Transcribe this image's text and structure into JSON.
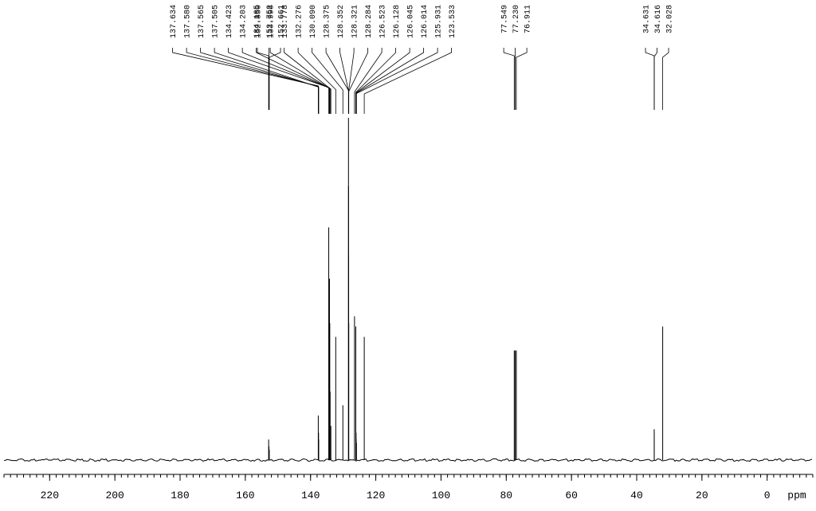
{
  "chart_data": {
    "type": "spectrum",
    "x_label": "ppm",
    "xlim": [
      234,
      -14
    ],
    "xticks": [
      220,
      200,
      180,
      160,
      140,
      120,
      100,
      80,
      60,
      40,
      20,
      0
    ],
    "color": "#000000",
    "x": [
      152.85,
      152.752,
      152.661,
      137.634,
      137.58,
      137.565,
      137.505,
      134.423,
      134.203,
      134.105,
      133.998,
      133.778,
      132.276,
      130.09,
      128.375,
      128.352,
      128.321,
      128.284,
      126.523,
      126.128,
      126.045,
      126.014,
      125.931,
      123.533,
      77.549,
      77.23,
      76.911,
      34.631,
      34.616,
      32.028
    ],
    "peak_labels": [
      "152.850",
      "152.752",
      "152.661",
      "137.634",
      "137.580",
      "137.565",
      "137.505",
      "134.423",
      "134.203",
      "134.105",
      "133.998",
      "133.778",
      "132.276",
      "130.090",
      "128.375",
      "128.352",
      "128.321",
      "128.284",
      "126.523",
      "126.128",
      "126.045",
      "126.014",
      "125.931",
      "123.533",
      "77.549",
      "77.230",
      "76.911",
      "34.631",
      "34.616",
      "32.028"
    ],
    "values": [
      6,
      4,
      3,
      13,
      8,
      8,
      6,
      68,
      53,
      40,
      20,
      10,
      36,
      16,
      100,
      80,
      60,
      40,
      42,
      39,
      8,
      6,
      5,
      36,
      32,
      32,
      32,
      9,
      8,
      39
    ]
  }
}
